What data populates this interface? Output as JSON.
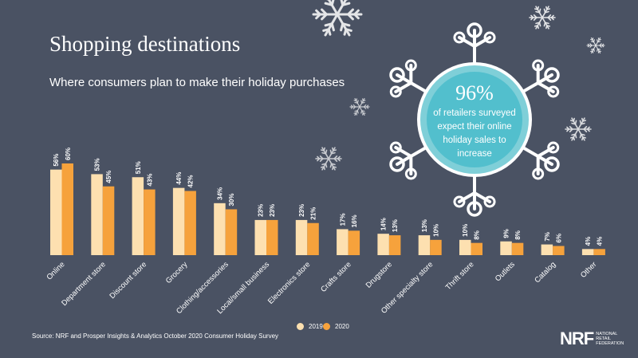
{
  "colors": {
    "background": "#4a5263",
    "series_2019": "#fde0b0",
    "series_2020": "#f6a23c",
    "badge_ring": "#7fcfd8",
    "badge_fill": "#52bfcd",
    "snowflake": "#ffffff"
  },
  "headline": {
    "title": "Shopping destinations",
    "subtitle": "Where consumers plan to make their holiday purchases"
  },
  "badge": {
    "percent": "96%",
    "line1": "of retailers surveyed",
    "line2": "expect their online",
    "line3": "holiday sales to",
    "line4": "increase"
  },
  "legend": {
    "label_2019": "2019",
    "label_2020": "2020"
  },
  "footer": {
    "source": "Source: NRF and Prosper Insights & Analytics October 2020 Consumer Holiday Survey",
    "logo_mark": "NRF",
    "logo_line1": "NATIONAL",
    "logo_line2": "RETAIL",
    "logo_line3": "FEDERATION"
  },
  "chart_data": {
    "type": "bar",
    "categories": [
      "Online",
      "Department store",
      "Discount store",
      "Grocery",
      "Clothing/accessories",
      "Local/small business",
      "Electronics store",
      "Crafts store",
      "Drugstore",
      "Other specialty store",
      "Thrift store",
      "Outlets",
      "Catalog",
      "Other"
    ],
    "series": [
      {
        "name": "2019",
        "values": [
          56,
          53,
          51,
          44,
          34,
          23,
          23,
          17,
          14,
          13,
          10,
          9,
          7,
          4
        ]
      },
      {
        "name": "2020",
        "values": [
          60,
          45,
          43,
          42,
          30,
          23,
          21,
          16,
          13,
          10,
          8,
          8,
          6,
          4
        ]
      }
    ],
    "value_suffix": "%",
    "ylim": [
      0,
      60
    ]
  }
}
